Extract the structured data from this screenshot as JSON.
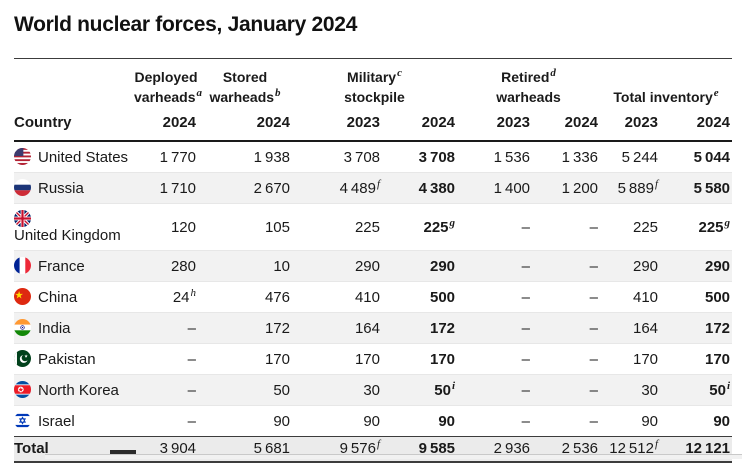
{
  "title": "World nuclear forces, January 2024",
  "table": {
    "country_header": "Country",
    "groups": [
      {
        "line1": "Deployed",
        "line1_sup": "",
        "line2": "varheads",
        "line2_sup": "a",
        "span": 1
      },
      {
        "line1": "Stored",
        "line1_sup": "",
        "line2": "warheads",
        "line2_sup": "b",
        "span": 1
      },
      {
        "line1": "Military",
        "line1_sup": "c",
        "line2": "stockpile",
        "line2_sup": "",
        "span": 2
      },
      {
        "line1": "Retired",
        "line1_sup": "d",
        "line2": "warheads",
        "line2_sup": "",
        "span": 2
      },
      {
        "line1": "Total inventory",
        "line1_sup": "e",
        "line2": "",
        "line2_sup": "",
        "span": 2
      }
    ],
    "years": [
      "2024",
      "2024",
      "2023",
      "2024",
      "2023",
      "2024",
      "2023",
      "2024"
    ],
    "bold_columns": [
      3,
      7
    ],
    "rows": [
      {
        "country": "United States",
        "flag": "us",
        "wrap": false,
        "cells": [
          {
            "v": "1 770"
          },
          {
            "v": "1 938"
          },
          {
            "v": "3 708"
          },
          {
            "v": "3 708"
          },
          {
            "v": "1 536"
          },
          {
            "v": "1 336"
          },
          {
            "v": "5 244"
          },
          {
            "v": "5 044"
          }
        ]
      },
      {
        "country": "Russia",
        "flag": "ru",
        "wrap": false,
        "cells": [
          {
            "v": "1 710"
          },
          {
            "v": "2 670"
          },
          {
            "v": "4 489",
            "s": "f"
          },
          {
            "v": "4 380"
          },
          {
            "v": "1 400"
          },
          {
            "v": "1 200"
          },
          {
            "v": "5 889",
            "s": "f"
          },
          {
            "v": "5 580"
          }
        ]
      },
      {
        "country": "United Kingdom",
        "flag": "uk",
        "wrap": true,
        "cells": [
          {
            "v": "120"
          },
          {
            "v": "105"
          },
          {
            "v": "225"
          },
          {
            "v": "225",
            "s": "g"
          },
          {
            "v": "–"
          },
          {
            "v": "–"
          },
          {
            "v": "225"
          },
          {
            "v": "225",
            "s": "g"
          }
        ]
      },
      {
        "country": "France",
        "flag": "fr",
        "wrap": false,
        "cells": [
          {
            "v": "280"
          },
          {
            "v": "10"
          },
          {
            "v": "290"
          },
          {
            "v": "290"
          },
          {
            "v": "–"
          },
          {
            "v": "–"
          },
          {
            "v": "290"
          },
          {
            "v": "290"
          }
        ]
      },
      {
        "country": "China",
        "flag": "cn",
        "wrap": false,
        "cells": [
          {
            "v": "24",
            "s": "h"
          },
          {
            "v": "476"
          },
          {
            "v": "410"
          },
          {
            "v": "500"
          },
          {
            "v": "–"
          },
          {
            "v": "–"
          },
          {
            "v": "410"
          },
          {
            "v": "500"
          }
        ]
      },
      {
        "country": "India",
        "flag": "in",
        "wrap": false,
        "cells": [
          {
            "v": "–"
          },
          {
            "v": "172"
          },
          {
            "v": "164"
          },
          {
            "v": "172"
          },
          {
            "v": "–"
          },
          {
            "v": "–"
          },
          {
            "v": "164"
          },
          {
            "v": "172"
          }
        ]
      },
      {
        "country": "Pakistan",
        "flag": "pk",
        "wrap": false,
        "cells": [
          {
            "v": "–"
          },
          {
            "v": "170"
          },
          {
            "v": "170"
          },
          {
            "v": "170"
          },
          {
            "v": "–"
          },
          {
            "v": "–"
          },
          {
            "v": "170"
          },
          {
            "v": "170"
          }
        ]
      },
      {
        "country": "North Korea",
        "flag": "kp",
        "wrap": false,
        "cells": [
          {
            "v": "–"
          },
          {
            "v": "50"
          },
          {
            "v": "30"
          },
          {
            "v": "50",
            "s": "i"
          },
          {
            "v": "–"
          },
          {
            "v": "–"
          },
          {
            "v": "30"
          },
          {
            "v": "50",
            "s": "i"
          }
        ]
      },
      {
        "country": "Israel",
        "flag": "il",
        "wrap": false,
        "cells": [
          {
            "v": "–"
          },
          {
            "v": "90"
          },
          {
            "v": "90"
          },
          {
            "v": "90"
          },
          {
            "v": "–"
          },
          {
            "v": "–"
          },
          {
            "v": "90"
          },
          {
            "v": "90"
          }
        ]
      }
    ],
    "total_row": {
      "label": "Total",
      "cells": [
        {
          "v": "3 904"
        },
        {
          "v": "5 681"
        },
        {
          "v": "9 576",
          "s": "f"
        },
        {
          "v": "9 585"
        },
        {
          "v": "2 936"
        },
        {
          "v": "2 536"
        },
        {
          "v": "12 512",
          "s": "f"
        },
        {
          "v": "12 121"
        }
      ]
    }
  },
  "chart_data": {
    "type": "table",
    "title": "World nuclear forces, January 2024",
    "columns": [
      "Country",
      "Deployed varheads 2024",
      "Stored warheads 2024",
      "Military stockpile 2023",
      "Military stockpile 2024",
      "Retired warheads 2023",
      "Retired warheads 2024",
      "Total inventory 2023",
      "Total inventory 2024"
    ],
    "rows": [
      [
        "United States",
        1770,
        1938,
        3708,
        3708,
        1536,
        1336,
        5244,
        5044
      ],
      [
        "Russia",
        1710,
        2670,
        4489,
        4380,
        1400,
        1200,
        5889,
        5580
      ],
      [
        "United Kingdom",
        120,
        105,
        225,
        225,
        null,
        null,
        225,
        225
      ],
      [
        "France",
        280,
        10,
        290,
        290,
        null,
        null,
        290,
        290
      ],
      [
        "China",
        24,
        476,
        410,
        500,
        null,
        null,
        410,
        500
      ],
      [
        "India",
        null,
        172,
        164,
        172,
        null,
        null,
        164,
        172
      ],
      [
        "Pakistan",
        null,
        170,
        170,
        170,
        null,
        null,
        170,
        170
      ],
      [
        "North Korea",
        null,
        50,
        30,
        50,
        null,
        null,
        30,
        50
      ],
      [
        "Israel",
        null,
        90,
        90,
        90,
        null,
        null,
        90,
        90
      ],
      [
        "Total",
        3904,
        5681,
        9576,
        9585,
        2936,
        2536,
        12512,
        12121
      ]
    ],
    "footnote_markers": [
      "a",
      "b",
      "c",
      "d",
      "e",
      "f",
      "g",
      "h",
      "i"
    ],
    "layout_hints": {
      "grid": "row-stripes",
      "bold_columns": [
        "Military stockpile 2024",
        "Total inventory 2024"
      ]
    }
  },
  "colors": {
    "text": "#1a1a1a",
    "stripe_row": "#f2f2f2",
    "total_row_bg": "#ebebeb",
    "rule_dark": "#3c3c3c",
    "row_hairline": "#e7e7e7"
  }
}
